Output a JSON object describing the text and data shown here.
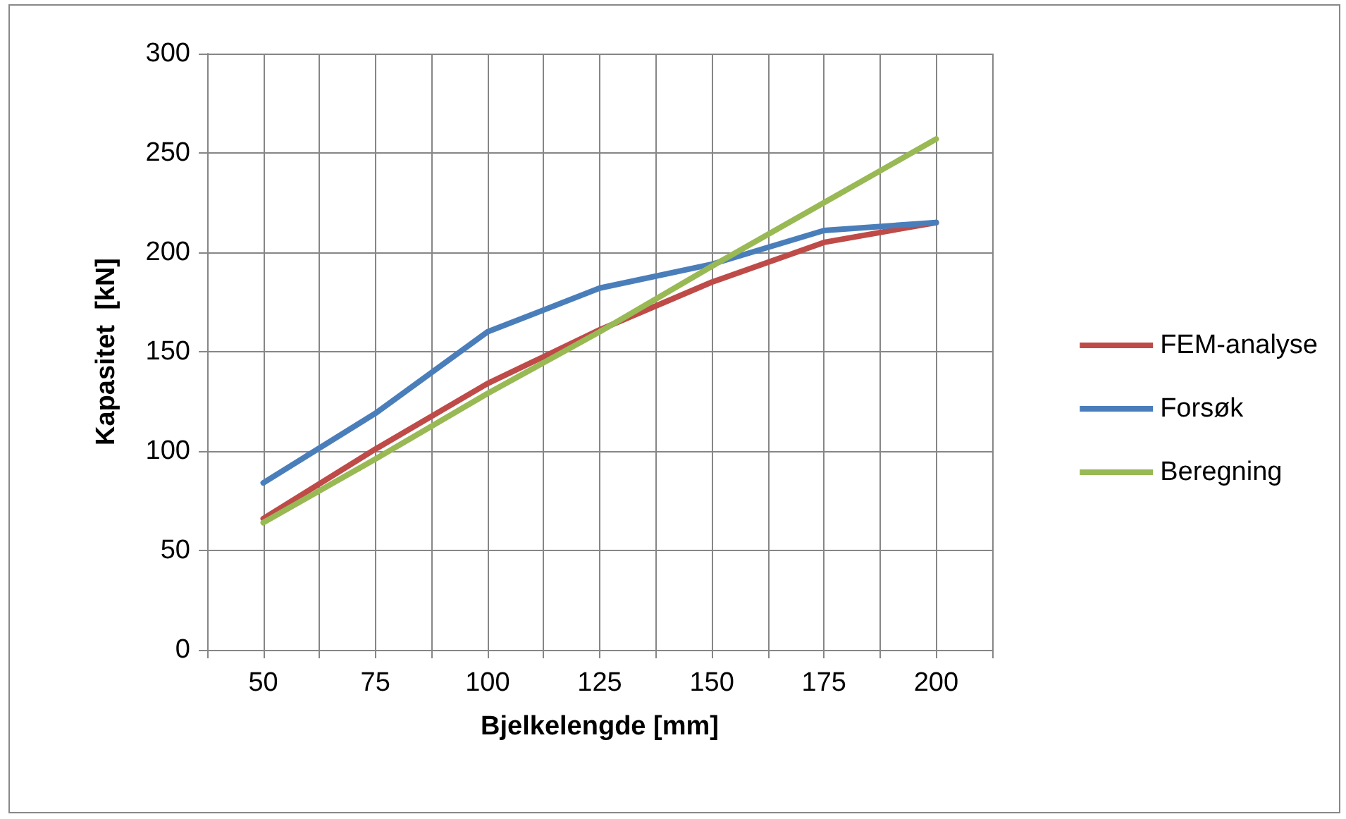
{
  "chart_data": {
    "type": "line",
    "xlabel": "Bjelkelengde [mm]",
    "ylabel": "Kapasitet  [kN]",
    "x": [
      50,
      75,
      100,
      125,
      150,
      175,
      200
    ],
    "series": [
      {
        "name": "FEM-analyse",
        "color": "#be4b48",
        "values": [
          66,
          101,
          134,
          161,
          185,
          205,
          215
        ]
      },
      {
        "name": "Forsøk",
        "color": "#4a7ebb",
        "values": [
          84,
          119,
          160,
          182,
          194,
          211,
          215
        ]
      },
      {
        "name": "Beregning",
        "color": "#98b954",
        "values": [
          64,
          96,
          129,
          160,
          193,
          225,
          257
        ]
      }
    ],
    "xlim": [
      37.5,
      212.5
    ],
    "xticks": [
      {
        "value": 37.5,
        "label": null
      },
      50,
      {
        "value": 62.5,
        "label": null
      },
      75,
      {
        "value": 87.5,
        "label": null
      },
      100,
      {
        "value": 112.5,
        "label": null
      },
      125,
      {
        "value": 137.5,
        "label": null
      },
      150,
      {
        "value": 162.5,
        "label": null
      },
      175,
      {
        "value": 187.5,
        "label": null
      },
      200,
      {
        "value": 212.5,
        "label": null
      }
    ],
    "ylim": [
      0,
      300
    ],
    "yticks": [
      0,
      50,
      100,
      150,
      200,
      250,
      300
    ],
    "grid": true,
    "legend": "right",
    "marker": "none",
    "line_style": "solid"
  }
}
